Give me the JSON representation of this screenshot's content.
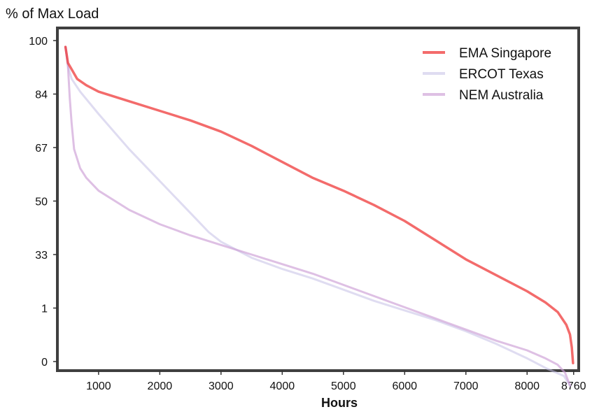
{
  "chart_data": {
    "type": "line",
    "title": "% of Max Load",
    "xlabel": "Hours",
    "ylabel": "",
    "x_ticks": [
      {
        "x": 1000,
        "label": "1000"
      },
      {
        "x": 2000,
        "label": "2000"
      },
      {
        "x": 3000,
        "label": "3000"
      },
      {
        "x": 4000,
        "label": "4000"
      },
      {
        "x": 5000,
        "label": "5000"
      },
      {
        "x": 6000,
        "label": "6000"
      },
      {
        "x": 7000,
        "label": "7000"
      },
      {
        "x": 8000,
        "label": "8000"
      },
      {
        "x": 8760,
        "label": "8760"
      }
    ],
    "y_tick_labels": [
      "100",
      "84",
      "67",
      "50",
      "33",
      "1",
      "0"
    ],
    "xlim": [
      350,
      8820
    ],
    "legend_position": "top-right",
    "grid": false,
    "series": [
      {
        "name": "EMA Singapore",
        "color": "#ef3a3a",
        "opacity": 0.75,
        "points": [
          [
            460,
            98
          ],
          [
            500,
            93
          ],
          [
            560,
            91
          ],
          [
            650,
            88
          ],
          [
            800,
            86
          ],
          [
            1000,
            84
          ],
          [
            1500,
            81
          ],
          [
            2000,
            78
          ],
          [
            2500,
            75
          ],
          [
            3000,
            71.5
          ],
          [
            3500,
            67
          ],
          [
            4000,
            62
          ],
          [
            4500,
            57
          ],
          [
            5000,
            53
          ],
          [
            5500,
            48.5
          ],
          [
            6000,
            43.5
          ],
          [
            6500,
            37.5
          ],
          [
            7000,
            31.5
          ],
          [
            7500,
            26.5
          ],
          [
            8000,
            21.5
          ],
          [
            8300,
            18
          ],
          [
            8500,
            15
          ],
          [
            8640,
            11
          ],
          [
            8700,
            8
          ],
          [
            8730,
            4
          ],
          [
            8750,
            -1
          ]
        ]
      },
      {
        "name": "ERCOT Texas",
        "color": "#c5bfe5",
        "opacity": 0.55,
        "points": [
          [
            460,
            98
          ],
          [
            500,
            92
          ],
          [
            560,
            88
          ],
          [
            700,
            84
          ],
          [
            1000,
            77
          ],
          [
            1500,
            66
          ],
          [
            2000,
            56
          ],
          [
            2500,
            46
          ],
          [
            2800,
            40
          ],
          [
            3000,
            37
          ],
          [
            3500,
            32
          ],
          [
            4000,
            28.5
          ],
          [
            4500,
            25.5
          ],
          [
            5000,
            22
          ],
          [
            5500,
            18.5
          ],
          [
            6000,
            15.5
          ],
          [
            6500,
            12.5
          ],
          [
            7000,
            9
          ],
          [
            7500,
            5
          ],
          [
            8000,
            0.5
          ],
          [
            8300,
            -2.5
          ],
          [
            8600,
            -5
          ],
          [
            8700,
            -8
          ]
        ]
      },
      {
        "name": "NEM Australia",
        "color": "#cc9ed6",
        "opacity": 0.65,
        "points": [
          [
            460,
            98
          ],
          [
            500,
            92
          ],
          [
            530,
            82
          ],
          [
            560,
            74
          ],
          [
            600,
            66
          ],
          [
            700,
            60
          ],
          [
            800,
            57
          ],
          [
            1000,
            53
          ],
          [
            1500,
            47
          ],
          [
            2000,
            42.5
          ],
          [
            2500,
            39
          ],
          [
            3000,
            36
          ],
          [
            3500,
            33
          ],
          [
            4000,
            30
          ],
          [
            4500,
            27
          ],
          [
            5000,
            23.5
          ],
          [
            5500,
            20
          ],
          [
            6000,
            16.5
          ],
          [
            6500,
            13
          ],
          [
            7000,
            9.5
          ],
          [
            7500,
            6
          ],
          [
            8000,
            3
          ],
          [
            8300,
            0.5
          ],
          [
            8500,
            -1.5
          ],
          [
            8620,
            -4
          ],
          [
            8680,
            -7
          ],
          [
            8700,
            -8
          ]
        ]
      }
    ]
  }
}
